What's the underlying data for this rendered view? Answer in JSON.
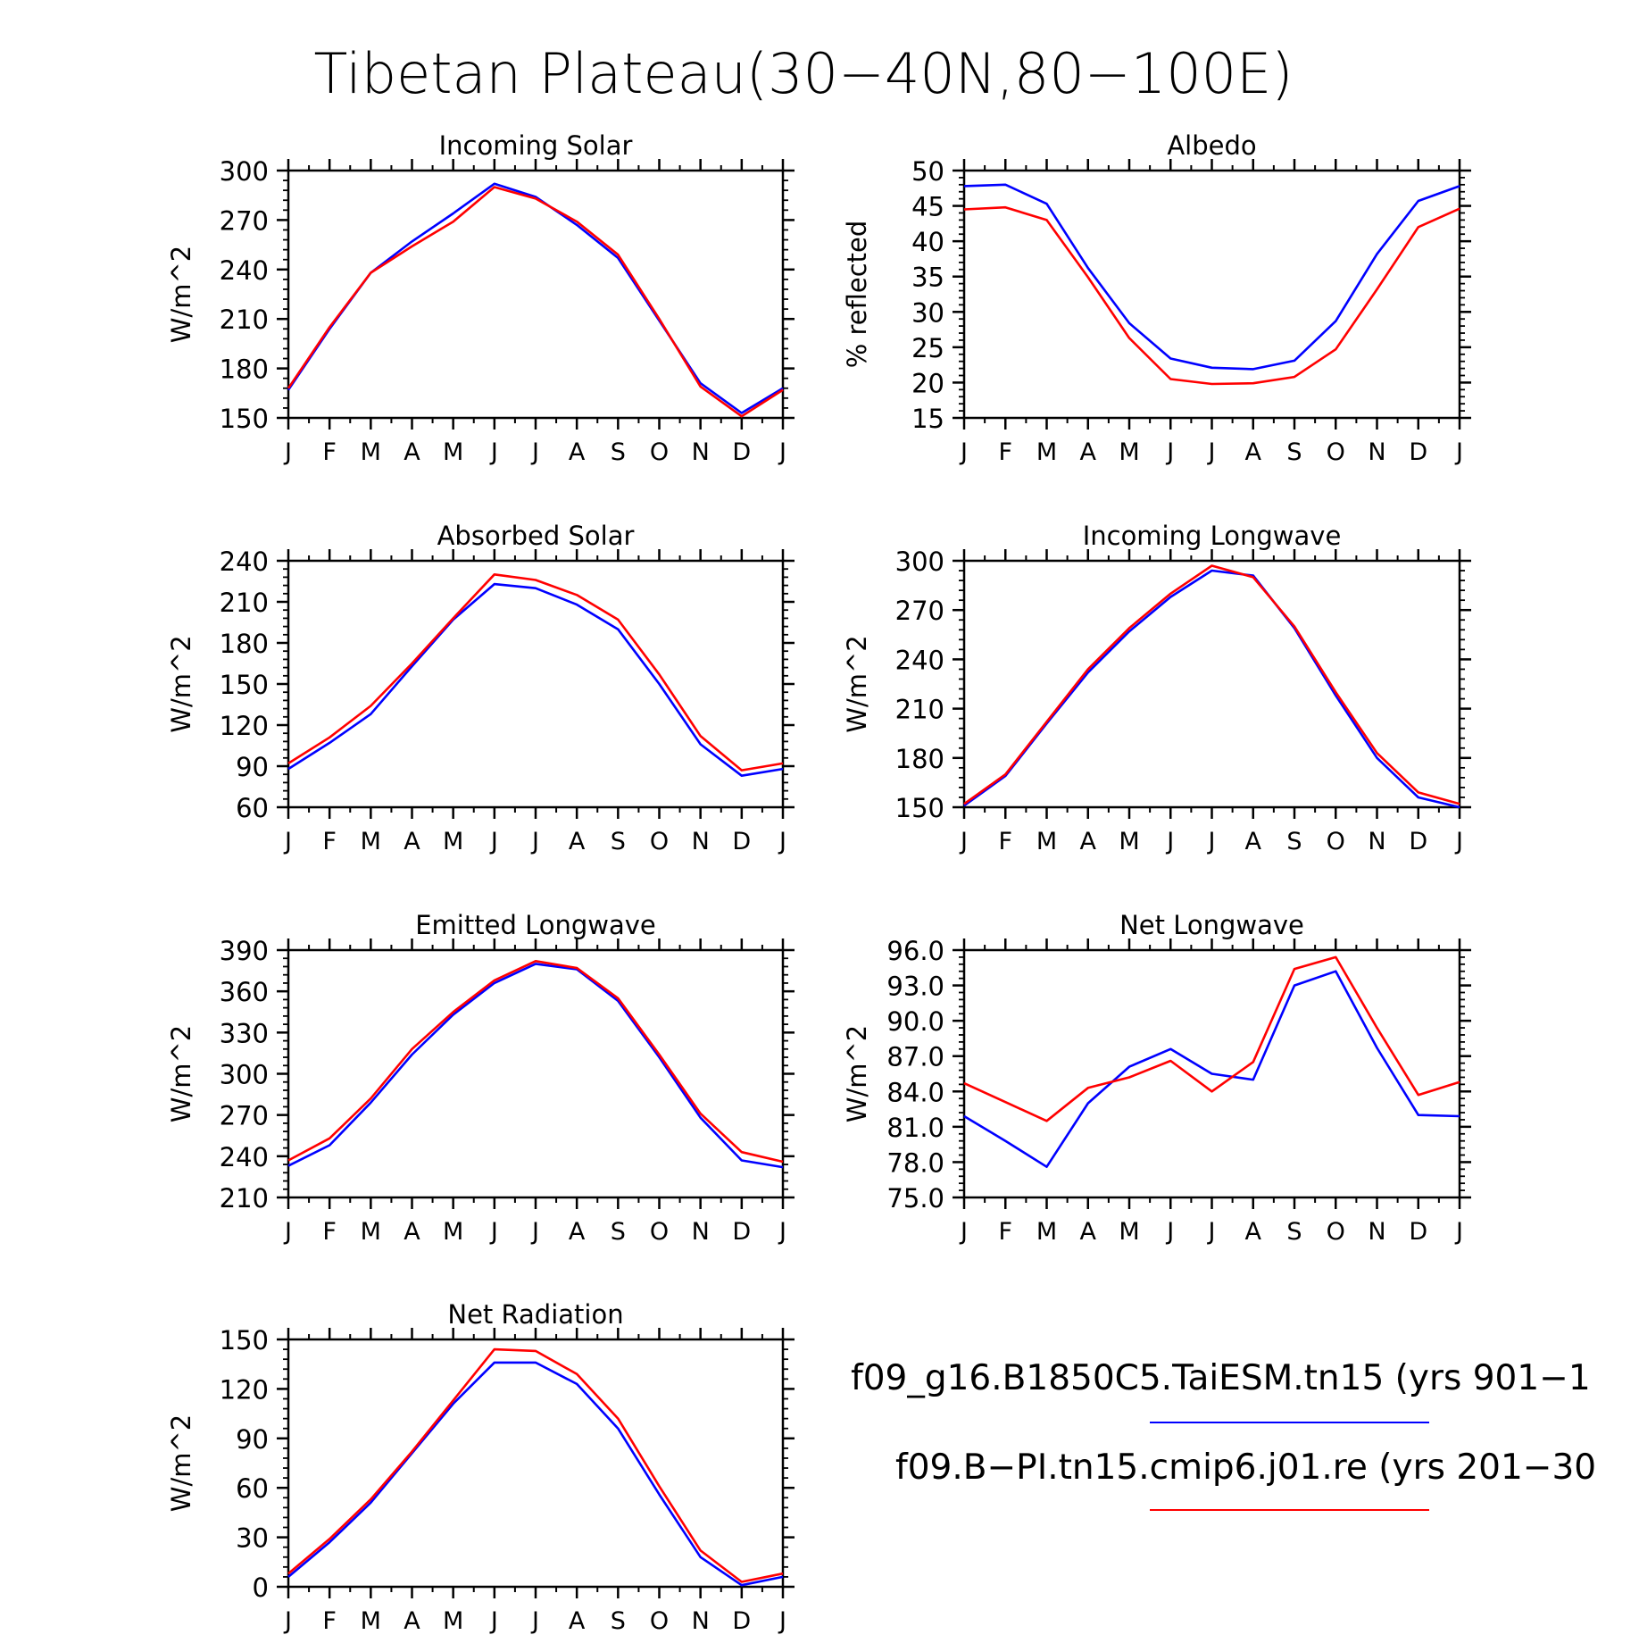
{
  "page_title": "Tibetan Plateau(30−40N,80−100E)",
  "legend": [
    {
      "label": "f09_g16.B1850C5.TaiESM.tn15 (yrs 901−1",
      "color": "#0000ff"
    },
    {
      "label": "f09.B−PI.tn15.cmip6.j01.re (yrs 201−30",
      "color": "#ff0000"
    }
  ],
  "chart_data": [
    {
      "type": "line",
      "title": "Incoming Solar",
      "ylabel": "W/m^2",
      "x": [
        "J",
        "F",
        "M",
        "A",
        "M",
        "J",
        "J",
        "A",
        "S",
        "O",
        "N",
        "D",
        "J"
      ],
      "ylim": [
        150,
        300
      ],
      "yticks": [
        150,
        180,
        210,
        240,
        270,
        300
      ],
      "ytick_labels": [
        "150",
        "180",
        "210",
        "240",
        "270",
        "300"
      ],
      "series": [
        {
          "color": "#0000ff",
          "values": [
            167,
            204,
            238,
            257,
            274,
            292,
            284,
            267,
            247,
            209,
            171,
            153,
            168
          ]
        },
        {
          "color": "#ff0000",
          "values": [
            168,
            205,
            238,
            254,
            269,
            290,
            283,
            269,
            249,
            210,
            169,
            151,
            167
          ]
        }
      ]
    },
    {
      "type": "line",
      "title": "Albedo",
      "ylabel": "% reflected",
      "x": [
        "J",
        "F",
        "M",
        "A",
        "M",
        "J",
        "J",
        "A",
        "S",
        "O",
        "N",
        "D",
        "J"
      ],
      "ylim": [
        15,
        50
      ],
      "yticks": [
        15,
        20,
        25,
        30,
        35,
        40,
        45,
        50
      ],
      "ytick_labels": [
        "15",
        "20",
        "25",
        "30",
        "35",
        "40",
        "45",
        "50"
      ],
      "series": [
        {
          "color": "#0000ff",
          "values": [
            47.8,
            48.0,
            45.3,
            36.2,
            28.4,
            23.4,
            22.1,
            21.9,
            23.1,
            28.7,
            38.2,
            45.7,
            47.8
          ]
        },
        {
          "color": "#ff0000",
          "values": [
            44.5,
            44.8,
            43.0,
            34.9,
            26.3,
            20.5,
            19.8,
            19.9,
            20.8,
            24.7,
            33.2,
            42.0,
            44.6
          ]
        }
      ]
    },
    {
      "type": "line",
      "title": "Absorbed Solar",
      "ylabel": "W/m^2",
      "x": [
        "J",
        "F",
        "M",
        "A",
        "M",
        "J",
        "J",
        "A",
        "S",
        "O",
        "N",
        "D",
        "J"
      ],
      "ylim": [
        60,
        240
      ],
      "yticks": [
        60,
        90,
        120,
        150,
        180,
        210,
        240
      ],
      "ytick_labels": [
        "60",
        "90",
        "120",
        "150",
        "180",
        "210",
        "240"
      ],
      "series": [
        {
          "color": "#0000ff",
          "values": [
            88,
            107,
            128,
            163,
            197,
            223,
            220,
            208,
            190,
            150,
            106,
            83,
            88
          ]
        },
        {
          "color": "#ff0000",
          "values": [
            92,
            111,
            134,
            165,
            198,
            230,
            226,
            215,
            197,
            157,
            112,
            87,
            92
          ]
        }
      ]
    },
    {
      "type": "line",
      "title": "Incoming Longwave",
      "ylabel": "W/m^2",
      "x": [
        "J",
        "F",
        "M",
        "A",
        "M",
        "J",
        "J",
        "A",
        "S",
        "O",
        "N",
        "D",
        "J"
      ],
      "ylim": [
        150,
        300
      ],
      "yticks": [
        150,
        180,
        210,
        240,
        270,
        300
      ],
      "ytick_labels": [
        "150",
        "180",
        "210",
        "240",
        "270",
        "300"
      ],
      "series": [
        {
          "color": "#0000ff",
          "values": [
            151,
            169,
            201,
            232,
            257,
            278,
            294,
            291,
            259,
            218,
            180,
            156,
            150
          ]
        },
        {
          "color": "#ff0000",
          "values": [
            152,
            170,
            202,
            234,
            259,
            280,
            297,
            290,
            260,
            220,
            183,
            159,
            152
          ]
        }
      ]
    },
    {
      "type": "line",
      "title": "Emitted Longwave",
      "ylabel": "W/m^2",
      "x": [
        "J",
        "F",
        "M",
        "A",
        "M",
        "J",
        "J",
        "A",
        "S",
        "O",
        "N",
        "D",
        "J"
      ],
      "ylim": [
        210,
        390
      ],
      "yticks": [
        210,
        240,
        270,
        300,
        330,
        360,
        390
      ],
      "ytick_labels": [
        "210",
        "240",
        "270",
        "300",
        "330",
        "360",
        "390"
      ],
      "series": [
        {
          "color": "#0000ff",
          "values": [
            233,
            248,
            279,
            314,
            343,
            366,
            380,
            376,
            353,
            312,
            268,
            237,
            232
          ]
        },
        {
          "color": "#ff0000",
          "values": [
            237,
            253,
            282,
            318,
            345,
            368,
            382,
            377,
            355,
            314,
            271,
            243,
            236
          ]
        }
      ]
    },
    {
      "type": "line",
      "title": "Net Longwave",
      "ylabel": "W/m^2",
      "x": [
        "J",
        "F",
        "M",
        "A",
        "M",
        "J",
        "J",
        "A",
        "S",
        "O",
        "N",
        "D",
        "J"
      ],
      "ylim": [
        75.0,
        96.0
      ],
      "yticks": [
        75,
        78,
        81,
        84,
        87,
        90,
        93,
        96
      ],
      "ytick_labels": [
        "75.0",
        "78.0",
        "81.0",
        "84.0",
        "87.0",
        "90.0",
        "93.0",
        "96.0"
      ],
      "series": [
        {
          "color": "#0000ff",
          "values": [
            81.9,
            79.8,
            77.6,
            83.0,
            86.1,
            87.6,
            85.5,
            85.0,
            93.0,
            94.2,
            87.7,
            82.0,
            81.9
          ]
        },
        {
          "color": "#ff0000",
          "values": [
            84.7,
            83.1,
            81.5,
            84.3,
            85.2,
            86.6,
            84.0,
            86.5,
            94.4,
            95.4,
            89.4,
            83.7,
            84.8
          ]
        }
      ]
    },
    {
      "type": "line",
      "title": "Net Radiation",
      "ylabel": "W/m^2",
      "x": [
        "J",
        "F",
        "M",
        "A",
        "M",
        "J",
        "J",
        "A",
        "S",
        "O",
        "N",
        "D",
        "J"
      ],
      "ylim": [
        0,
        150
      ],
      "yticks": [
        0,
        30,
        60,
        90,
        120,
        150
      ],
      "ytick_labels": [
        "0",
        "30",
        "60",
        "90",
        "120",
        "150"
      ],
      "series": [
        {
          "color": "#0000ff",
          "values": [
            6,
            27,
            51,
            81,
            111,
            136,
            136,
            123,
            96,
            56,
            18,
            1,
            6
          ]
        },
        {
          "color": "#ff0000",
          "values": [
            8,
            29,
            53,
            82,
            113,
            144,
            143,
            129,
            102,
            61,
            22,
            3,
            8
          ]
        }
      ]
    }
  ]
}
